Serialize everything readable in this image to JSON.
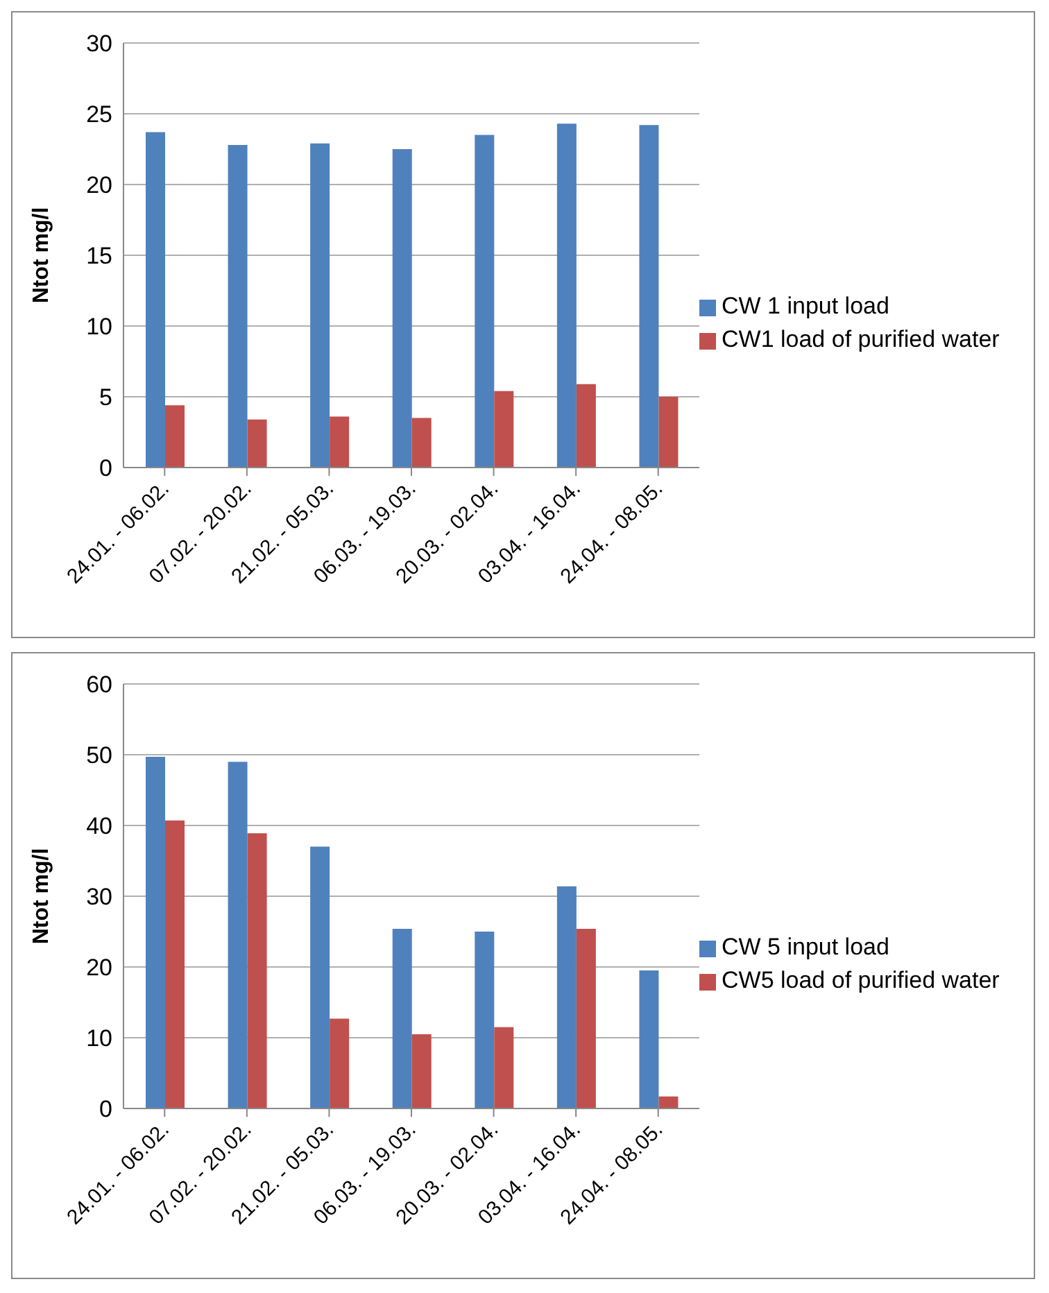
{
  "chart_data": [
    {
      "type": "bar",
      "ylabel": "Ntot mg/l",
      "categories": [
        "24.01. - 06.02.",
        "07.02. - 20.02.",
        "21.02. - 05.03.",
        "06.03. - 19.03.",
        "20.03. - 02.04.",
        "03.04. - 16.04.",
        "24.04. - 08.05."
      ],
      "series": [
        {
          "name": "CW 1 input load",
          "color": "#4f81bd",
          "values": [
            23.7,
            22.8,
            22.9,
            22.5,
            23.5,
            24.3,
            24.2
          ]
        },
        {
          "name": "CW1 load of purified water",
          "color": "#c0504d",
          "values": [
            4.4,
            3.4,
            3.6,
            3.5,
            5.4,
            5.9,
            5.0
          ]
        }
      ],
      "ylim": [
        0,
        30
      ],
      "yticks": [
        0,
        5,
        10,
        15,
        20,
        25,
        30
      ],
      "grid": "y",
      "legend": "right"
    },
    {
      "type": "bar",
      "ylabel": "Ntot mg/l",
      "categories": [
        "24.01. - 06.02.",
        "07.02. - 20.02.",
        "21.02. - 05.03.",
        "06.03. - 19.03.",
        "20.03. - 02.04.",
        "03.04. - 16.04.",
        "24.04. - 08.05."
      ],
      "series": [
        {
          "name": "CW 5 input load",
          "color": "#4f81bd",
          "values": [
            49.7,
            49.0,
            37.0,
            25.4,
            25.0,
            31.4,
            19.5
          ]
        },
        {
          "name": "CW5 load of purified water",
          "color": "#c0504d",
          "values": [
            40.7,
            38.9,
            12.7,
            10.5,
            11.5,
            25.4,
            1.7
          ]
        }
      ],
      "ylim": [
        0,
        60
      ],
      "yticks": [
        0,
        10,
        20,
        30,
        40,
        50,
        60
      ],
      "grid": "y",
      "legend": "right"
    }
  ]
}
